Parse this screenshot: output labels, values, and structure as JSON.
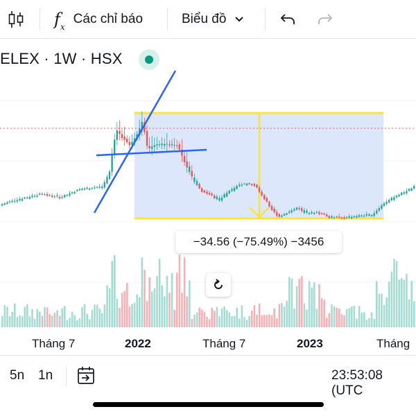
{
  "toolbar": {
    "indicators_label": "Các chỉ báo",
    "chart_type_label": "Biểu đồ",
    "fx_glyph": "f",
    "fx_sub": "x"
  },
  "symbol": {
    "title": "ELEX · 1W · HSX",
    "status_color": "#089981"
  },
  "measurement": {
    "text": "−34.56 (−75.49%) −3456"
  },
  "time_axis": {
    "labels": [
      "Tháng 7",
      "2022",
      "Tháng 7",
      "2023",
      "Tháng"
    ]
  },
  "bottom_bar": {
    "ranges": [
      "5n",
      "1n"
    ],
    "clock": "23:53:08 (UTC"
  },
  "colors": {
    "up": "#26a69a",
    "down": "#ef5350",
    "up_volume": "#a5dcd1",
    "down_volume": "#f5b1b5",
    "trendline": "#2962ff",
    "measure_border": "#fbe33a",
    "measure_fill": "#dbe6fb",
    "price_line": "#ef5350"
  }
}
